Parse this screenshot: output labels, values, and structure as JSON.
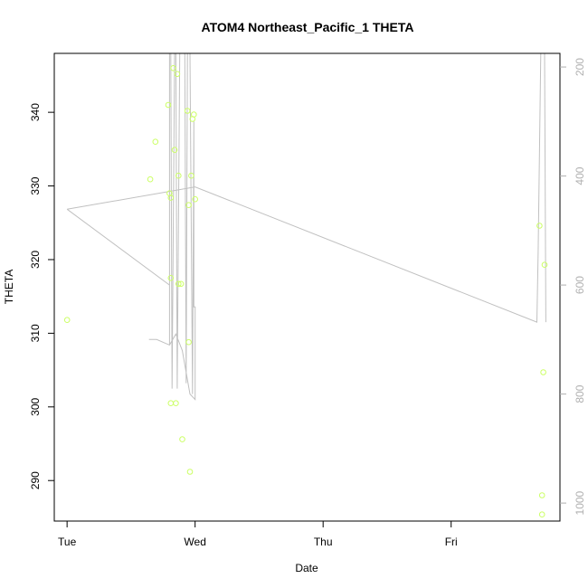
{
  "chart_data": {
    "type": "scatter",
    "title": "ATOM4 Northeast_Pacific_1 THETA",
    "xlabel": "Date",
    "ylabel": "THETA",
    "x_ticks": [
      {
        "label": "Tue",
        "value": 0
      },
      {
        "label": "Wed",
        "value": 1
      },
      {
        "label": "Thu",
        "value": 2
      },
      {
        "label": "Fri",
        "value": 3
      }
    ],
    "xlim": [
      -0.1,
      3.85
    ],
    "ylim": [
      284.5,
      348
    ],
    "y_ticks": [
      290,
      300,
      310,
      320,
      330,
      340
    ],
    "secondary_y": {
      "ticks": [
        200,
        400,
        600,
        800,
        1000
      ],
      "ylim": [
        1033,
        175
      ],
      "color": "#b0b0b0"
    },
    "point_color": "#ccff66",
    "line_color": "#c0c0c0",
    "points": [
      {
        "x": 0.0,
        "y": 311.8
      },
      {
        "x": 0.65,
        "y": 330.9
      },
      {
        "x": 0.69,
        "y": 336.0
      },
      {
        "x": 0.79,
        "y": 341.0
      },
      {
        "x": 0.8,
        "y": 329.0
      },
      {
        "x": 0.81,
        "y": 328.4
      },
      {
        "x": 0.81,
        "y": 317.5
      },
      {
        "x": 0.81,
        "y": 300.5
      },
      {
        "x": 0.83,
        "y": 346.0
      },
      {
        "x": 0.84,
        "y": 334.9
      },
      {
        "x": 0.85,
        "y": 300.5
      },
      {
        "x": 0.86,
        "y": 345.2
      },
      {
        "x": 0.87,
        "y": 331.4
      },
      {
        "x": 0.87,
        "y": 316.7
      },
      {
        "x": 0.89,
        "y": 316.7
      },
      {
        "x": 0.9,
        "y": 295.6
      },
      {
        "x": 0.94,
        "y": 340.2
      },
      {
        "x": 0.95,
        "y": 327.4
      },
      {
        "x": 0.95,
        "y": 308.8
      },
      {
        "x": 0.96,
        "y": 291.2
      },
      {
        "x": 0.97,
        "y": 331.4
      },
      {
        "x": 0.98,
        "y": 339.1
      },
      {
        "x": 0.99,
        "y": 339.7
      },
      {
        "x": 1.0,
        "y": 328.2
      },
      {
        "x": 3.69,
        "y": 324.6
      },
      {
        "x": 3.71,
        "y": 288.0
      },
      {
        "x": 3.71,
        "y": 285.4
      },
      {
        "x": 3.72,
        "y": 304.7
      },
      {
        "x": 3.73,
        "y": 319.3
      }
    ],
    "depth_lines": [
      {
        "name": "",
        "points": [
          [
            0.0,
            461
          ],
          [
            1.0,
            420
          ],
          [
            3.67,
            668
          ],
          [
            3.68,
            540
          ],
          [
            3.7,
            175
          ],
          [
            3.73,
            175
          ],
          [
            3.74,
            668
          ]
        ]
      },
      {
        "name": "",
        "points": [
          [
            0.0,
            461
          ],
          [
            0.8,
            600
          ],
          [
            0.8,
            710
          ],
          [
            0.8,
            175
          ],
          [
            0.81,
            175
          ],
          [
            0.82,
            790
          ],
          [
            0.84,
            175
          ],
          [
            0.85,
            175
          ],
          [
            0.86,
            790
          ],
          [
            0.88,
            175
          ],
          [
            0.92,
            175
          ],
          [
            0.93,
            780
          ],
          [
            0.94,
            175
          ],
          [
            0.96,
            175
          ],
          [
            0.98,
            800
          ],
          [
            0.99,
            300
          ],
          [
            0.99,
            640
          ],
          [
            1.0,
            640
          ],
          [
            1.0,
            810
          ],
          [
            0.96,
            800
          ],
          [
            0.9,
            720
          ],
          [
            0.85,
            690
          ],
          [
            0.8,
            710
          ],
          [
            0.7,
            700
          ],
          [
            0.64,
            700
          ]
        ]
      }
    ]
  }
}
